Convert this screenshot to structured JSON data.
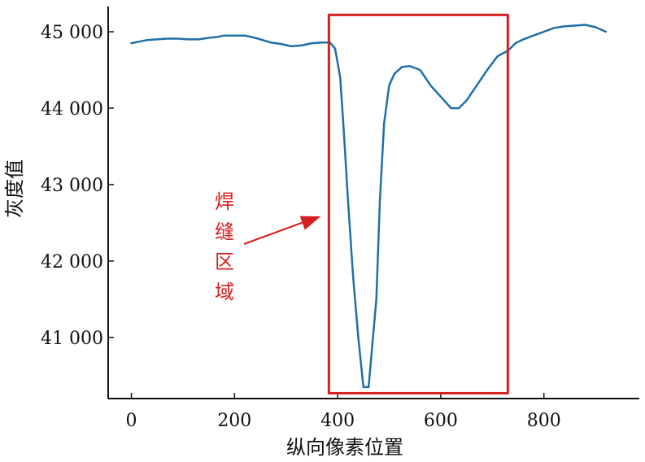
{
  "chart_data": {
    "type": "line",
    "title": "",
    "xlabel": "纵向像素位置",
    "ylabel": "灰度值",
    "xlim": [
      -45,
      985
    ],
    "ylim": [
      40200,
      45330
    ],
    "xticks": [
      0,
      200,
      400,
      600,
      800
    ],
    "xtick_labels": [
      "0",
      "200",
      "400",
      "600",
      "800"
    ],
    "yticks": [
      41000,
      42000,
      43000,
      44000,
      45000
    ],
    "ytick_labels": [
      "41 000",
      "42 000",
      "43 000",
      "44 000",
      "45 000"
    ],
    "grid": false,
    "series": [
      {
        "color": "#1f6fa8",
        "x": [
          0,
          15,
          30,
          50,
          70,
          90,
          110,
          130,
          150,
          165,
          180,
          200,
          220,
          240,
          255,
          270,
          290,
          310,
          330,
          350,
          370,
          385,
          395,
          405,
          412,
          420,
          430,
          440,
          450,
          460,
          475,
          482,
          490,
          500,
          510,
          525,
          540,
          560,
          580,
          600,
          620,
          635,
          650,
          670,
          690,
          710,
          730,
          745,
          760,
          780,
          800,
          820,
          840,
          860,
          880,
          900,
          920
        ],
        "y": [
          44850,
          44870,
          44890,
          44900,
          44910,
          44910,
          44900,
          44900,
          44920,
          44930,
          44950,
          44950,
          44950,
          44920,
          44890,
          44860,
          44840,
          44810,
          44820,
          44850,
          44860,
          44860,
          44780,
          44400,
          43700,
          42800,
          41800,
          41000,
          40350,
          40350,
          41500,
          42800,
          43800,
          44300,
          44450,
          44540,
          44550,
          44500,
          44300,
          44150,
          44000,
          44000,
          44100,
          44300,
          44500,
          44680,
          44750,
          44850,
          44900,
          44950,
          45000,
          45050,
          45070,
          45080,
          45090,
          45060,
          45000
        ]
      }
    ],
    "annotation": {
      "text": "焊缝区域",
      "chars": [
        "焊",
        "缝",
        "区",
        "域"
      ],
      "box_x": [
        383,
        730
      ],
      "box_y": [
        40270,
        45220
      ],
      "box_color": "#d62020",
      "arrow_color": "#d62020"
    }
  }
}
